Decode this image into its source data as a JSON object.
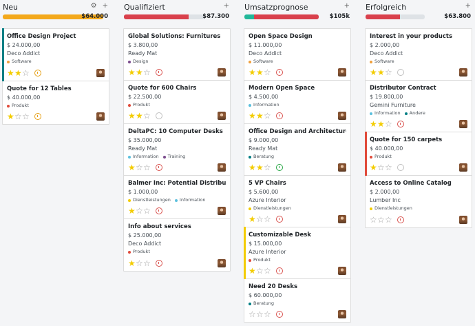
{
  "colors": {
    "green": "#21b799",
    "yellow": "#f3a81b",
    "red": "#d9404c",
    "orange": "#e6a118",
    "grey": "#dee2e6",
    "tag_orange": "#f0a03c",
    "tag_red": "#e04a3a",
    "tag_blue": "#5bc0de",
    "tag_yellow": "#f3cc00",
    "tag_purple": "#7a4b8c",
    "tag_teal": "#017e84"
  },
  "columns": [
    {
      "title": "Neu",
      "sum": "$64.000",
      "show_gear": true,
      "progress": [
        {
          "color": "#f3a81b",
          "pct": 100
        }
      ],
      "cards": [
        {
          "title": "Office Design Project",
          "amount": "$ 24.000,00",
          "partner": "Deco Addict",
          "tags": [
            {
              "label": "Software",
              "color": "#f0a03c"
            }
          ],
          "stars": 2,
          "activity": "orange",
          "accent": "teal"
        },
        {
          "title": "Quote for 12 Tables",
          "amount": "$ 40.000,00",
          "partner": "",
          "tags": [
            {
              "label": "Produkt",
              "color": "#e04a3a"
            }
          ],
          "stars": 1,
          "activity": "orange",
          "accent": ""
        }
      ]
    },
    {
      "title": "Qualifiziert",
      "sum": "$87.300",
      "show_gear": false,
      "progress": [
        {
          "color": "#d9404c",
          "pct": 80
        }
      ],
      "cards": [
        {
          "title": "Global Solutions: Furnitures",
          "amount": "$ 3.800,00",
          "partner": "Ready Mat",
          "tags": [
            {
              "label": "Design",
              "color": "#7a4b8c"
            }
          ],
          "stars": 2,
          "activity": "red",
          "accent": ""
        },
        {
          "title": "Quote for 600 Chairs",
          "amount": "$ 22.500,00",
          "partner": "",
          "tags": [
            {
              "label": "Produkt",
              "color": "#e04a3a"
            }
          ],
          "stars": 2,
          "activity": "grey",
          "accent": ""
        },
        {
          "title": "DeltaPC: 10 Computer Desks",
          "amount": "$ 35.000,00",
          "partner": "Ready Mat",
          "tags": [
            {
              "label": "Information",
              "color": "#5bc0de"
            },
            {
              "label": "Training",
              "color": "#7a4b8c"
            }
          ],
          "stars": 1,
          "activity": "red",
          "accent": ""
        },
        {
          "title": "Balmer Inc: Potential Distributor",
          "amount": "$ 1.000,00",
          "partner": "",
          "tags": [
            {
              "label": "Dienstleistungen",
              "color": "#f3cc00"
            },
            {
              "label": "Information",
              "color": "#5bc0de"
            }
          ],
          "stars": 1,
          "activity": "red",
          "accent": ""
        },
        {
          "title": "Info about services",
          "amount": "$ 25.000,00",
          "partner": "Deco Addict",
          "tags": [
            {
              "label": "Produkt",
              "color": "#e04a3a"
            }
          ],
          "stars": 1,
          "activity": "red",
          "accent": ""
        }
      ]
    },
    {
      "title": "Umsatzprognose",
      "sum": "$105k",
      "show_gear": false,
      "progress": [
        {
          "color": "#21b799",
          "pct": 13
        },
        {
          "color": "#d9404c",
          "pct": 87
        }
      ],
      "cards": [
        {
          "title": "Open Space Design",
          "amount": "$ 11.000,00",
          "partner": "Deco Addict",
          "tags": [
            {
              "label": "Software",
              "color": "#f0a03c"
            }
          ],
          "stars": 2,
          "activity": "red",
          "accent": ""
        },
        {
          "title": "Modern Open Space",
          "amount": "$ 4.500,00",
          "partner": "",
          "tags": [
            {
              "label": "Information",
              "color": "#5bc0de"
            }
          ],
          "stars": 2,
          "activity": "red",
          "accent": ""
        },
        {
          "title": "Office Design and Architecture",
          "amount": "$ 9.000,00",
          "partner": "Ready Mat",
          "tags": [
            {
              "label": "Beratung",
              "color": "#017e84"
            }
          ],
          "stars": 2,
          "activity": "green",
          "accent": ""
        },
        {
          "title": "5 VP Chairs",
          "amount": "$ 5.600,00",
          "partner": "Azure Interior",
          "tags": [
            {
              "label": "Dienstleistungen",
              "color": "#f3cc00"
            }
          ],
          "stars": 1,
          "activity": "red",
          "accent": ""
        },
        {
          "title": "Customizable Desk",
          "amount": "$ 15.000,00",
          "partner": "Azure Interior",
          "tags": [
            {
              "label": "Produkt",
              "color": "#e04a3a"
            }
          ],
          "stars": 1,
          "activity": "red",
          "accent": "yellow"
        },
        {
          "title": "Need 20 Desks",
          "amount": "$ 60.000,00",
          "partner": "",
          "tags": [
            {
              "label": "Beratung",
              "color": "#017e84"
            }
          ],
          "stars": 0,
          "activity": "red",
          "accent": ""
        }
      ]
    },
    {
      "title": "Erfolgreich",
      "sum": "$63.800",
      "show_gear": false,
      "progress": [
        {
          "color": "#d9404c",
          "pct": 58
        }
      ],
      "cards": [
        {
          "title": "Interest in your products",
          "amount": "$ 2.000,00",
          "partner": "Deco Addict",
          "tags": [
            {
              "label": "Software",
              "color": "#f0a03c"
            }
          ],
          "stars": 2,
          "activity": "grey",
          "accent": ""
        },
        {
          "title": "Distributor Contract",
          "amount": "$ 19.800,00",
          "partner": "Gemini Furniture",
          "tags": [
            {
              "label": "Information",
              "color": "#5bc0de"
            },
            {
              "label": "Andere",
              "color": "#017e84"
            }
          ],
          "stars": 2,
          "activity": "red",
          "accent": ""
        },
        {
          "title": "Quote for 150 carpets",
          "amount": "$ 40.000,00",
          "partner": "",
          "tags": [
            {
              "label": "Produkt",
              "color": "#e04a3a"
            }
          ],
          "stars": 1,
          "activity": "grey",
          "accent": "red"
        },
        {
          "title": "Access to Online Catalog",
          "amount": "$ 2.000,00",
          "partner": "Lumber Inc",
          "tags": [
            {
              "label": "Dienstleistungen",
              "color": "#f3cc00"
            }
          ],
          "stars": 0,
          "activity": "red",
          "accent": ""
        }
      ]
    }
  ],
  "icons": {
    "add": "+",
    "gear": "⚙",
    "star_on": "★",
    "star_off": "☆"
  }
}
